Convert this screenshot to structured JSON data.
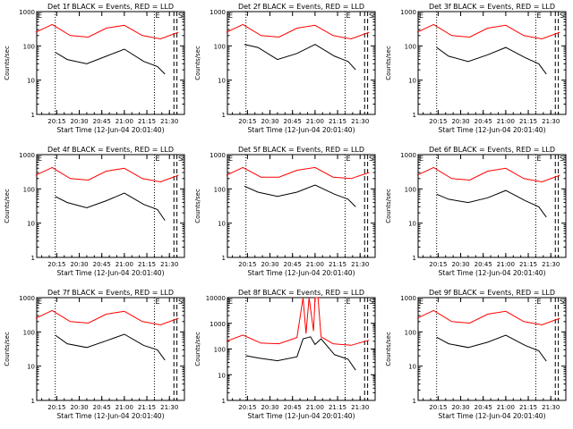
{
  "figure": {
    "xlabel": "Start Time (12-Jun-04 20:01:40)",
    "ylabel": "Counts/sec",
    "tick_labels": [
      "20:15",
      "20:30",
      "20:45",
      "21:00",
      "21:15",
      "21:30"
    ],
    "corner_labels": {
      "left": "E",
      "mid": "E",
      "right": "S"
    },
    "colors": {
      "events": "#000000",
      "lld": "#ff0000",
      "axes": "#000000",
      "background": "#ffffff"
    }
  },
  "chart_data": [
    {
      "type": "line",
      "title": "Det 1f BLACK = Events, RED = LLD",
      "xlabel": "Start Time (12-Jun-04 20:01:40)",
      "ylabel": "Counts/sec",
      "xlim": [
        "20:01:40",
        "21:40"
      ],
      "ylim": [
        1,
        1000
      ],
      "yscale": "log",
      "x_ticks": [
        "20:15",
        "20:30",
        "20:45",
        "21:00",
        "21:15",
        "21:30"
      ],
      "y_ticks": [
        "1",
        "10",
        "100",
        "1000"
      ],
      "series": [
        {
          "name": "Events",
          "color": "#000000",
          "x": [
            "20:14",
            "20:22",
            "20:35",
            "20:48",
            "21:00",
            "21:13",
            "21:22",
            "21:27"
          ],
          "values": [
            65,
            40,
            30,
            50,
            80,
            35,
            25,
            15
          ]
        },
        {
          "name": "LLD",
          "color": "#ff0000",
          "x": [
            "20:01",
            "20:12",
            "20:24",
            "20:36",
            "20:48",
            "21:00",
            "21:12",
            "21:24",
            "21:36"
          ],
          "values": [
            250,
            420,
            200,
            180,
            330,
            400,
            200,
            160,
            250
          ]
        }
      ],
      "vlines": [
        "20:14",
        "21:20",
        "21:33",
        "21:35"
      ]
    },
    {
      "type": "line",
      "title": "Det 2f BLACK = Events, RED = LLD",
      "xlabel": "Start Time (12-Jun-04 20:01:40)",
      "ylabel": "Counts/sec",
      "xlim": [
        "20:01:40",
        "21:40"
      ],
      "ylim": [
        1,
        1000
      ],
      "yscale": "log",
      "x_ticks": [
        "20:15",
        "20:30",
        "20:45",
        "21:00",
        "21:15",
        "21:30"
      ],
      "y_ticks": [
        "1",
        "10",
        "100",
        "1000"
      ],
      "series": [
        {
          "name": "Events",
          "color": "#000000",
          "x": [
            "20:13",
            "20:22",
            "20:35",
            "20:48",
            "21:00",
            "21:13",
            "21:22",
            "21:27"
          ],
          "values": [
            110,
            90,
            40,
            60,
            110,
            50,
            35,
            20
          ]
        },
        {
          "name": "LLD",
          "color": "#ff0000",
          "x": [
            "20:01",
            "20:12",
            "20:24",
            "20:36",
            "20:48",
            "21:00",
            "21:12",
            "21:24",
            "21:36"
          ],
          "values": [
            250,
            420,
            200,
            180,
            330,
            400,
            200,
            160,
            250
          ]
        }
      ],
      "vlines": [
        "20:14",
        "21:20",
        "21:33",
        "21:35"
      ]
    },
    {
      "type": "line",
      "title": "Det 3f BLACK = Events, RED = LLD",
      "xlabel": "Start Time (12-Jun-04 20:01:40)",
      "ylabel": "Counts/sec",
      "xlim": [
        "20:01:40",
        "21:40"
      ],
      "ylim": [
        1,
        1000
      ],
      "yscale": "log",
      "x_ticks": [
        "20:15",
        "20:30",
        "20:45",
        "21:00",
        "21:15",
        "21:30"
      ],
      "y_ticks": [
        "1",
        "10",
        "100",
        "1000"
      ],
      "series": [
        {
          "name": "Events",
          "color": "#000000",
          "x": [
            "20:14",
            "20:22",
            "20:35",
            "20:48",
            "21:00",
            "21:13",
            "21:22",
            "21:27"
          ],
          "values": [
            90,
            50,
            35,
            55,
            90,
            45,
            30,
            15
          ]
        },
        {
          "name": "LLD",
          "color": "#ff0000",
          "x": [
            "20:01",
            "20:12",
            "20:24",
            "20:36",
            "20:48",
            "21:00",
            "21:12",
            "21:24",
            "21:36"
          ],
          "values": [
            250,
            420,
            200,
            180,
            330,
            400,
            200,
            160,
            250
          ]
        }
      ],
      "vlines": [
        "20:14",
        "21:20",
        "21:33",
        "21:35"
      ]
    },
    {
      "type": "line",
      "title": "Det 4f BLACK = Events, RED = LLD",
      "xlabel": "Start Time (12-Jun-04 20:01:40)",
      "ylabel": "Counts/sec",
      "xlim": [
        "20:01:40",
        "21:40"
      ],
      "ylim": [
        1,
        1000
      ],
      "yscale": "log",
      "x_ticks": [
        "20:15",
        "20:30",
        "20:45",
        "21:00",
        "21:15",
        "21:30"
      ],
      "y_ticks": [
        "1",
        "10",
        "100",
        "1000"
      ],
      "series": [
        {
          "name": "Events",
          "color": "#000000",
          "x": [
            "20:14",
            "20:22",
            "20:35",
            "20:48",
            "21:00",
            "21:13",
            "21:22",
            "21:27"
          ],
          "values": [
            60,
            40,
            28,
            45,
            75,
            35,
            25,
            12
          ]
        },
        {
          "name": "LLD",
          "color": "#ff0000",
          "x": [
            "20:01",
            "20:12",
            "20:24",
            "20:36",
            "20:48",
            "21:00",
            "21:12",
            "21:24",
            "21:36"
          ],
          "values": [
            250,
            420,
            200,
            180,
            330,
            400,
            200,
            160,
            250
          ]
        }
      ],
      "vlines": [
        "20:14",
        "21:20",
        "21:33",
        "21:35"
      ]
    },
    {
      "type": "line",
      "title": "Det 5f BLACK = Events, RED = LLD",
      "xlabel": "Start Time (12-Jun-04 20:01:40)",
      "ylabel": "Counts/sec",
      "xlim": [
        "20:01:40",
        "21:40"
      ],
      "ylim": [
        1,
        1000
      ],
      "yscale": "log",
      "x_ticks": [
        "20:15",
        "20:30",
        "20:45",
        "21:00",
        "21:15",
        "21:30"
      ],
      "y_ticks": [
        "1",
        "10",
        "100",
        "1000"
      ],
      "series": [
        {
          "name": "Events",
          "color": "#000000",
          "x": [
            "20:13",
            "20:22",
            "20:35",
            "20:48",
            "21:00",
            "21:13",
            "21:22",
            "21:27"
          ],
          "values": [
            120,
            80,
            60,
            80,
            130,
            70,
            50,
            30
          ]
        },
        {
          "name": "LLD",
          "color": "#ff0000",
          "x": [
            "20:01",
            "20:12",
            "20:24",
            "20:36",
            "20:48",
            "21:00",
            "21:12",
            "21:24",
            "21:36"
          ],
          "values": [
            250,
            420,
            220,
            220,
            350,
            420,
            220,
            200,
            300
          ]
        }
      ],
      "vlines": [
        "20:14",
        "21:20",
        "21:33",
        "21:35"
      ]
    },
    {
      "type": "line",
      "title": "Det 6f BLACK = Events, RED = LLD",
      "xlabel": "Start Time (12-Jun-04 20:01:40)",
      "ylabel": "Counts/sec",
      "xlim": [
        "20:01:40",
        "21:40"
      ],
      "ylim": [
        1,
        1000
      ],
      "yscale": "log",
      "x_ticks": [
        "20:15",
        "20:30",
        "20:45",
        "21:00",
        "21:15",
        "21:30"
      ],
      "y_ticks": [
        "1",
        "10",
        "100",
        "1000"
      ],
      "series": [
        {
          "name": "Events",
          "color": "#000000",
          "x": [
            "20:14",
            "20:22",
            "20:35",
            "20:48",
            "21:00",
            "21:13",
            "21:22",
            "21:27"
          ],
          "values": [
            70,
            50,
            40,
            55,
            90,
            45,
            30,
            15
          ]
        },
        {
          "name": "LLD",
          "color": "#ff0000",
          "x": [
            "20:01",
            "20:12",
            "20:24",
            "20:36",
            "20:48",
            "21:00",
            "21:12",
            "21:24",
            "21:36"
          ],
          "values": [
            250,
            420,
            200,
            180,
            330,
            400,
            200,
            160,
            250
          ]
        }
      ],
      "vlines": [
        "20:14",
        "21:20",
        "21:33",
        "21:35"
      ]
    },
    {
      "type": "line",
      "title": "Det 7f BLACK = Events, RED = LLD",
      "xlabel": "Start Time (12-Jun-04 20:01:40)",
      "ylabel": "Counts/sec",
      "xlim": [
        "20:01:40",
        "21:40"
      ],
      "ylim": [
        1,
        1000
      ],
      "yscale": "log",
      "x_ticks": [
        "20:15",
        "20:30",
        "20:45",
        "21:00",
        "21:15",
        "21:30"
      ],
      "y_ticks": [
        "1",
        "10",
        "100",
        "1000"
      ],
      "series": [
        {
          "name": "Events",
          "color": "#000000",
          "x": [
            "20:14",
            "20:22",
            "20:35",
            "20:48",
            "21:00",
            "21:13",
            "21:22",
            "21:27"
          ],
          "values": [
            80,
            45,
            35,
            55,
            85,
            40,
            30,
            15
          ]
        },
        {
          "name": "LLD",
          "color": "#ff0000",
          "x": [
            "20:01",
            "20:12",
            "20:24",
            "20:36",
            "20:48",
            "21:00",
            "21:12",
            "21:24",
            "21:36"
          ],
          "values": [
            250,
            420,
            200,
            180,
            330,
            400,
            200,
            160,
            250
          ]
        }
      ],
      "vlines": [
        "20:14",
        "21:20",
        "21:33",
        "21:35"
      ]
    },
    {
      "type": "line",
      "title": "Det 8f BLACK = Events, RED = LLD",
      "xlabel": "Start Time (12-Jun-04 20:01:40)",
      "ylabel": "Counts/sec",
      "xlim": [
        "20:01:40",
        "21:40"
      ],
      "ylim": [
        1,
        10000
      ],
      "yscale": "log",
      "x_ticks": [
        "20:15",
        "20:30",
        "20:45",
        "21:00",
        "21:15",
        "21:30"
      ],
      "y_ticks": [
        "1",
        "10",
        "100",
        "1000",
        "10000"
      ],
      "series": [
        {
          "name": "Events",
          "color": "#000000",
          "x": [
            "20:14",
            "20:22",
            "20:35",
            "20:48",
            "20:52",
            "20:57",
            "21:00",
            "21:04",
            "21:13",
            "21:22",
            "21:27"
          ],
          "values": [
            55,
            45,
            35,
            50,
            250,
            300,
            150,
            250,
            60,
            40,
            15
          ]
        },
        {
          "name": "LLD",
          "color": "#ff0000",
          "x": [
            "20:01",
            "20:12",
            "20:24",
            "20:36",
            "20:48",
            "20:52",
            "20:54",
            "20:56",
            "20:59",
            "21:00",
            "21:02",
            "21:04",
            "21:12",
            "21:24",
            "21:36"
          ],
          "values": [
            200,
            350,
            170,
            160,
            280,
            10000,
            400,
            10000,
            500,
            10000,
            10000,
            300,
            160,
            140,
            220
          ]
        }
      ],
      "vlines": [
        "20:14",
        "21:20",
        "21:33",
        "21:35"
      ]
    },
    {
      "type": "line",
      "title": "Det 9f BLACK = Events, RED = LLD",
      "xlabel": "Start Time (12-Jun-04 20:01:40)",
      "ylabel": "Counts/sec",
      "xlim": [
        "20:01:40",
        "21:40"
      ],
      "ylim": [
        1,
        1000
      ],
      "yscale": "log",
      "x_ticks": [
        "20:15",
        "20:30",
        "20:45",
        "21:00",
        "21:15",
        "21:30"
      ],
      "y_ticks": [
        "1",
        "10",
        "100",
        "1000"
      ],
      "series": [
        {
          "name": "Events",
          "color": "#000000",
          "x": [
            "20:14",
            "20:22",
            "20:35",
            "20:48",
            "21:00",
            "21:13",
            "21:22",
            "21:27"
          ],
          "values": [
            70,
            45,
            35,
            50,
            80,
            40,
            28,
            14
          ]
        },
        {
          "name": "LLD",
          "color": "#ff0000",
          "x": [
            "20:01",
            "20:12",
            "20:24",
            "20:36",
            "20:48",
            "21:00",
            "21:12",
            "21:24",
            "21:36"
          ],
          "values": [
            250,
            420,
            200,
            180,
            330,
            400,
            200,
            160,
            250
          ]
        }
      ],
      "vlines": [
        "20:14",
        "21:20",
        "21:33",
        "21:35"
      ]
    }
  ]
}
